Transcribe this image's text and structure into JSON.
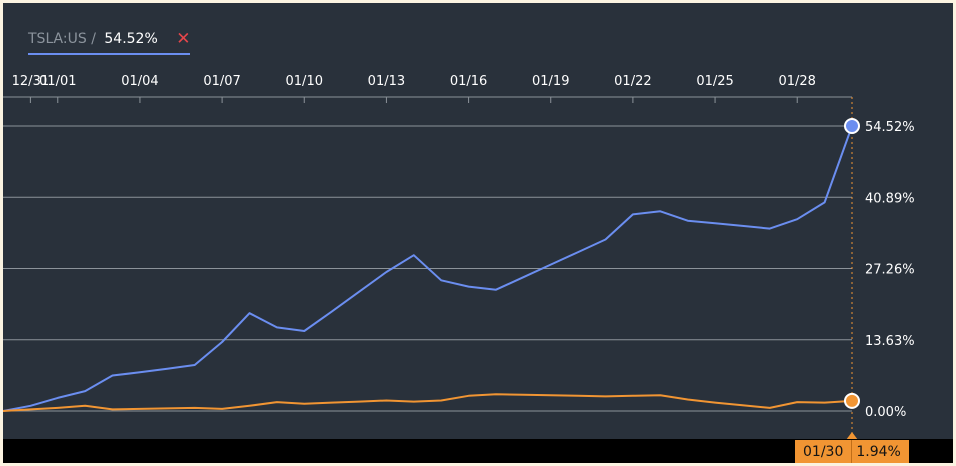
{
  "legend": {
    "ticker": "TSLA:US",
    "separator": " / ",
    "value": "54.52%",
    "close_icon": "close-icon",
    "underline_color": "#6b8ef0"
  },
  "crosshair": {
    "date": "01/30",
    "value": "1.94%"
  },
  "chart_data": {
    "type": "line",
    "x_ticks": [
      "12/31",
      "01/01",
      "01/04",
      "01/07",
      "01/10",
      "01/13",
      "01/16",
      "01/19",
      "01/22",
      "01/25",
      "01/28"
    ],
    "y_ticks": [
      "0.00%",
      "13.63%",
      "27.26%",
      "40.89%",
      "54.52%"
    ],
    "ylim": [
      0,
      54.52
    ],
    "x": [
      "12/30",
      "12/31",
      "01/01",
      "01/02",
      "01/03",
      "01/04",
      "01/05",
      "01/06",
      "01/07",
      "01/08",
      "01/09",
      "01/10",
      "01/11",
      "01/12",
      "01/13",
      "01/14",
      "01/15",
      "01/16",
      "01/17",
      "01/18",
      "01/19",
      "01/20",
      "01/21",
      "01/22",
      "01/23",
      "01/24",
      "01/25",
      "01/26",
      "01/27",
      "01/28",
      "01/29",
      "01/30"
    ],
    "grid": true,
    "series": [
      {
        "color": "#6b8ef0",
        "values": [
          0,
          1.0,
          2.5,
          3.8,
          6.8,
          7.4,
          8.1,
          8.8,
          13.2,
          18.7,
          16.0,
          15.3,
          19.0,
          22.8,
          26.6,
          29.8,
          25.0,
          23.8,
          23.2,
          25.6,
          28.0,
          30.4,
          32.8,
          37.6,
          38.2,
          36.4,
          35.9,
          35.4,
          34.9,
          36.7,
          39.9,
          54.52
        ],
        "end_label": "54.52%"
      },
      {
        "color": "#f19533",
        "values": [
          0,
          0.3,
          0.6,
          1.0,
          0.3,
          0.4,
          0.5,
          0.6,
          0.4,
          1.0,
          1.7,
          1.4,
          1.6,
          1.8,
          2.0,
          1.8,
          2.0,
          2.9,
          3.2,
          3.1,
          3.0,
          2.9,
          2.8,
          2.9,
          3.0,
          2.2,
          1.6,
          1.1,
          0.6,
          1.7,
          1.6,
          1.94
        ],
        "end_label": "1.94%"
      }
    ]
  }
}
